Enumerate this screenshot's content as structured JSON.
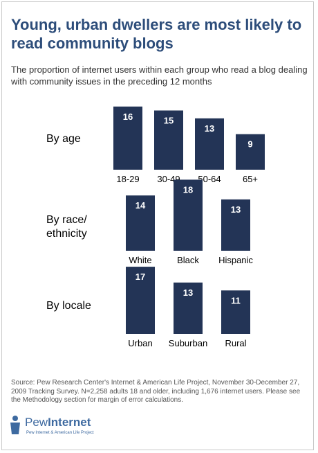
{
  "title": "Young, urban dwellers are most likely to read community blogs",
  "subtitle": "The proportion of internet users within each group who read a blog dealing with community issues in the preceding 12 months",
  "source": "Source: Pew Research Center's Internet & American Life Project, November 30-December 27, 2009 Tracking Survey. N=2,258 adults 18 and older, including 1,676 internet users. Please see the Methodology section for margin of error calculations.",
  "logo": {
    "name_light": "Pew",
    "name_bold": "Internet",
    "tagline": "Pew Internet & American Life Project"
  },
  "colors": {
    "bar": "#233456",
    "title": "#2d4d7a"
  },
  "chart_data": [
    {
      "type": "bar",
      "group_label": [
        "By age"
      ],
      "categories": [
        "18-29",
        "30-49",
        "50-64",
        "65+"
      ],
      "values": [
        16,
        15,
        13,
        9
      ]
    },
    {
      "type": "bar",
      "group_label": [
        "By race/",
        "ethnicity"
      ],
      "categories": [
        "White",
        "Black",
        "Hispanic"
      ],
      "values": [
        14,
        18,
        13
      ]
    },
    {
      "type": "bar",
      "group_label": [
        "By locale"
      ],
      "categories": [
        "Urban",
        "Suburban",
        "Rural"
      ],
      "values": [
        17,
        13,
        11
      ]
    }
  ]
}
